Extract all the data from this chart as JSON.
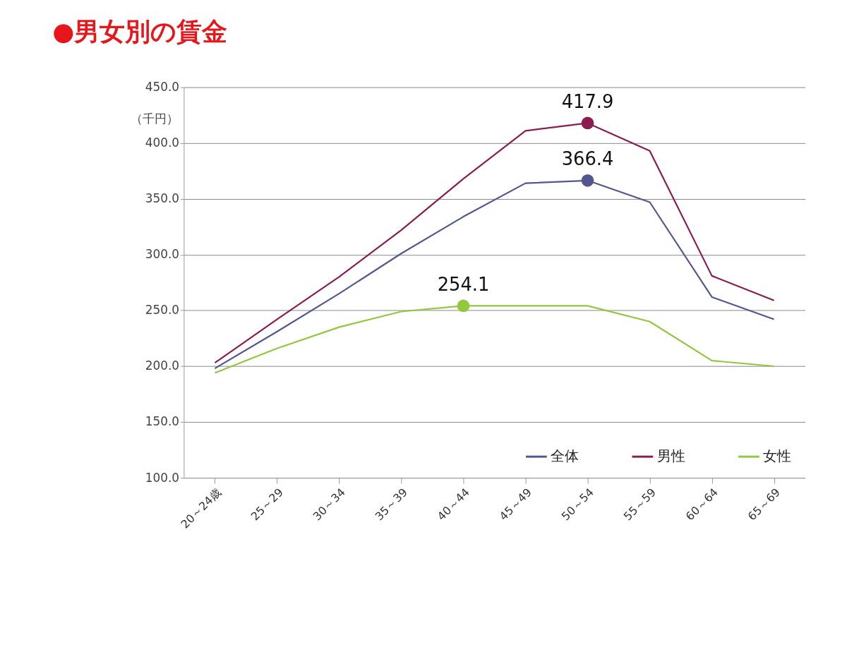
{
  "chart_data": {
    "type": "line",
    "title": "●男女別の賃金",
    "ylabel": "（千円）",
    "categories": [
      "20～24歳",
      "25～29",
      "30～34",
      "35～39",
      "40～44",
      "45～49",
      "50～54",
      "55～59",
      "60～64",
      "65～69"
    ],
    "series": [
      {
        "name": "全体",
        "color": "#52578f",
        "values": [
          198,
          231,
          265,
          301,
          334,
          364,
          366.4,
          347,
          262,
          242
        ]
      },
      {
        "name": "男性",
        "color": "#8b1c4f",
        "values": [
          203,
          242,
          280,
          322,
          368,
          411,
          417.9,
          393,
          281,
          259
        ]
      },
      {
        "name": "女性",
        "color": "#92c83e",
        "values": [
          194,
          216,
          235,
          249,
          254.1,
          254.1,
          254.1,
          240,
          205,
          200
        ]
      }
    ],
    "ylim": [
      100,
      450
    ],
    "yticks": [
      {
        "value": 100,
        "label": "100.0"
      },
      {
        "value": 150,
        "label": "150.0"
      },
      {
        "value": 200,
        "label": "200.0"
      },
      {
        "value": 250,
        "label": "250.0"
      },
      {
        "value": 300,
        "label": "300.0"
      },
      {
        "value": 350,
        "label": "350.0"
      },
      {
        "value": 400,
        "label": "400.0"
      },
      {
        "value": 450,
        "label": "450.0"
      }
    ],
    "grid": "y",
    "legend": "bottom right",
    "marker": "none",
    "line_style": "solid",
    "annotations": [
      {
        "text": "417.9",
        "x": "50～54",
        "y": 417.9
      },
      {
        "text": "366.4",
        "x": "50～54",
        "y": 366.4
      },
      {
        "text": "254.1",
        "x": "40～44",
        "y": 254.1
      }
    ]
  }
}
